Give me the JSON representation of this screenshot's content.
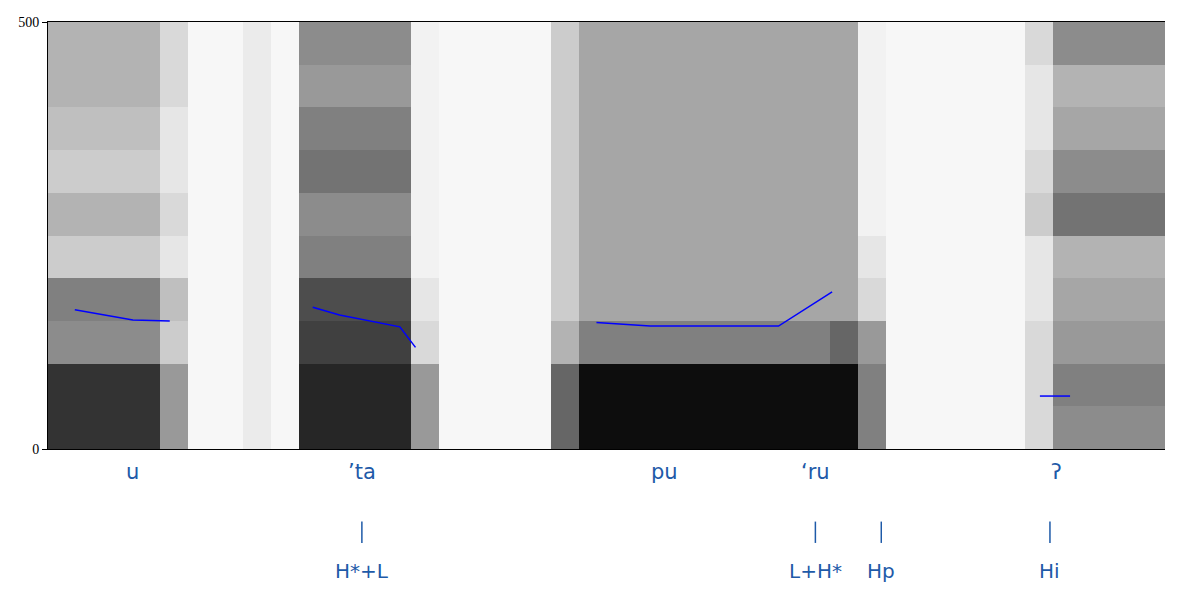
{
  "chart_data": {
    "type": "line",
    "xlim": [
      0,
      1
    ],
    "ylim": [
      0,
      500
    ],
    "yticks": [
      0,
      500
    ],
    "tick_labels": "y",
    "series": [
      {
        "color": "#0000ff",
        "x": [
          0.024,
          0.076,
          0.109,
          null,
          0.237,
          0.261,
          0.315,
          0.329,
          null,
          0.491,
          0.539,
          0.654,
          0.673,
          0.702,
          null,
          0.888,
          0.915
        ],
        "values": [
          163,
          151,
          150,
          null,
          166,
          157,
          143,
          119,
          null,
          148,
          144,
          144,
          160,
          184,
          null,
          62,
          62
        ]
      }
    ],
    "spectrogram": {
      "zlim": [
        0,
        1
      ],
      "x": [
        0.0125,
        0.0375,
        0.0625,
        0.0875,
        0.1125,
        0.1375,
        0.1625,
        0.1875,
        0.2125,
        0.2375,
        0.2625,
        0.2875,
        0.3125,
        0.3375,
        0.3625,
        0.3875,
        0.4125,
        0.4375,
        0.4625,
        0.4875,
        0.5125,
        0.5375,
        0.5625,
        0.5875,
        0.6125,
        0.6375,
        0.6625,
        0.6875,
        0.7125,
        0.7375,
        0.7625,
        0.7875,
        0.8125,
        0.8375,
        0.8625,
        0.8875,
        0.9125,
        0.9375,
        0.9625,
        0.9875
      ],
      "y": [
        25,
        75,
        125,
        175,
        225,
        275,
        325,
        375,
        425,
        475
      ],
      "z": [
        [
          0.8,
          0.8,
          0.8,
          0.8,
          0.4,
          0.03,
          0.03,
          0.08,
          0.03,
          0.85,
          0.85,
          0.85,
          0.85,
          0.4,
          0.03,
          0.03,
          0.03,
          0.03,
          0.6,
          0.95,
          0.95,
          0.95,
          0.95,
          0.95,
          0.95,
          0.95,
          0.95,
          0.95,
          0.95,
          0.5,
          0.03,
          0.03,
          0.03,
          0.03,
          0.03,
          0.15,
          0.45,
          0.45,
          0.45,
          0.45
        ],
        [
          0.8,
          0.8,
          0.8,
          0.8,
          0.4,
          0.03,
          0.03,
          0.08,
          0.03,
          0.85,
          0.85,
          0.85,
          0.85,
          0.4,
          0.03,
          0.03,
          0.03,
          0.03,
          0.6,
          0.95,
          0.95,
          0.95,
          0.95,
          0.95,
          0.95,
          0.95,
          0.95,
          0.95,
          0.95,
          0.5,
          0.03,
          0.03,
          0.03,
          0.03,
          0.03,
          0.15,
          0.5,
          0.5,
          0.5,
          0.5
        ],
        [
          0.45,
          0.45,
          0.45,
          0.45,
          0.2,
          0.03,
          0.03,
          0.08,
          0.03,
          0.75,
          0.75,
          0.75,
          0.75,
          0.15,
          0.03,
          0.03,
          0.03,
          0.03,
          0.3,
          0.5,
          0.5,
          0.5,
          0.5,
          0.5,
          0.5,
          0.5,
          0.5,
          0.5,
          0.6,
          0.4,
          0.03,
          0.03,
          0.03,
          0.03,
          0.03,
          0.15,
          0.4,
          0.4,
          0.4,
          0.4
        ],
        [
          0.5,
          0.5,
          0.5,
          0.5,
          0.25,
          0.03,
          0.03,
          0.08,
          0.03,
          0.7,
          0.7,
          0.7,
          0.7,
          0.1,
          0.03,
          0.03,
          0.03,
          0.03,
          0.2,
          0.35,
          0.35,
          0.35,
          0.35,
          0.35,
          0.35,
          0.35,
          0.35,
          0.35,
          0.35,
          0.15,
          0.03,
          0.03,
          0.03,
          0.03,
          0.03,
          0.1,
          0.35,
          0.35,
          0.35,
          0.35
        ],
        [
          0.2,
          0.2,
          0.2,
          0.2,
          0.1,
          0.03,
          0.03,
          0.08,
          0.03,
          0.5,
          0.5,
          0.5,
          0.5,
          0.05,
          0.03,
          0.03,
          0.03,
          0.03,
          0.2,
          0.35,
          0.35,
          0.35,
          0.35,
          0.35,
          0.35,
          0.35,
          0.35,
          0.35,
          0.35,
          0.1,
          0.03,
          0.03,
          0.03,
          0.03,
          0.03,
          0.1,
          0.3,
          0.3,
          0.3,
          0.3
        ],
        [
          0.3,
          0.3,
          0.3,
          0.3,
          0.15,
          0.03,
          0.03,
          0.08,
          0.03,
          0.45,
          0.45,
          0.45,
          0.45,
          0.05,
          0.03,
          0.03,
          0.03,
          0.03,
          0.2,
          0.35,
          0.35,
          0.35,
          0.35,
          0.35,
          0.35,
          0.35,
          0.35,
          0.35,
          0.35,
          0.05,
          0.03,
          0.03,
          0.03,
          0.03,
          0.03,
          0.2,
          0.55,
          0.55,
          0.55,
          0.55
        ],
        [
          0.2,
          0.2,
          0.2,
          0.2,
          0.1,
          0.03,
          0.03,
          0.08,
          0.03,
          0.55,
          0.55,
          0.55,
          0.55,
          0.05,
          0.03,
          0.03,
          0.03,
          0.03,
          0.2,
          0.35,
          0.35,
          0.35,
          0.35,
          0.35,
          0.35,
          0.35,
          0.35,
          0.35,
          0.35,
          0.05,
          0.03,
          0.03,
          0.03,
          0.03,
          0.03,
          0.15,
          0.45,
          0.45,
          0.45,
          0.45
        ],
        [
          0.25,
          0.25,
          0.25,
          0.25,
          0.1,
          0.03,
          0.03,
          0.08,
          0.03,
          0.5,
          0.5,
          0.5,
          0.5,
          0.05,
          0.03,
          0.03,
          0.03,
          0.03,
          0.2,
          0.35,
          0.35,
          0.35,
          0.35,
          0.35,
          0.35,
          0.35,
          0.35,
          0.35,
          0.35,
          0.05,
          0.03,
          0.03,
          0.03,
          0.03,
          0.03,
          0.1,
          0.35,
          0.35,
          0.35,
          0.35
        ],
        [
          0.3,
          0.3,
          0.3,
          0.3,
          0.15,
          0.03,
          0.03,
          0.08,
          0.03,
          0.4,
          0.4,
          0.4,
          0.4,
          0.05,
          0.03,
          0.03,
          0.03,
          0.03,
          0.2,
          0.35,
          0.35,
          0.35,
          0.35,
          0.35,
          0.35,
          0.35,
          0.35,
          0.35,
          0.35,
          0.05,
          0.03,
          0.03,
          0.03,
          0.03,
          0.03,
          0.1,
          0.3,
          0.3,
          0.3,
          0.3
        ],
        [
          0.3,
          0.3,
          0.3,
          0.3,
          0.15,
          0.03,
          0.03,
          0.08,
          0.03,
          0.45,
          0.45,
          0.45,
          0.45,
          0.05,
          0.03,
          0.03,
          0.03,
          0.03,
          0.2,
          0.35,
          0.35,
          0.35,
          0.35,
          0.35,
          0.35,
          0.35,
          0.35,
          0.35,
          0.35,
          0.05,
          0.03,
          0.03,
          0.03,
          0.03,
          0.03,
          0.15,
          0.45,
          0.45,
          0.45,
          0.45
        ]
      ]
    },
    "syllable_labels": [
      {
        "text": "u",
        "x": 0.076
      },
      {
        "text": "’ta",
        "x": 0.281
      },
      {
        "text": "pu",
        "x": 0.552
      },
      {
        "text": "‘ru",
        "x": 0.687
      },
      {
        "text": "ʔ",
        "x": 0.903
      }
    ],
    "tone_labels": [
      {
        "text": "H*+L",
        "x": 0.281
      },
      {
        "text": "L+H*",
        "x": 0.687
      },
      {
        "text": "Hp",
        "x": 0.746
      },
      {
        "text": "Hi",
        "x": 0.897
      }
    ]
  }
}
